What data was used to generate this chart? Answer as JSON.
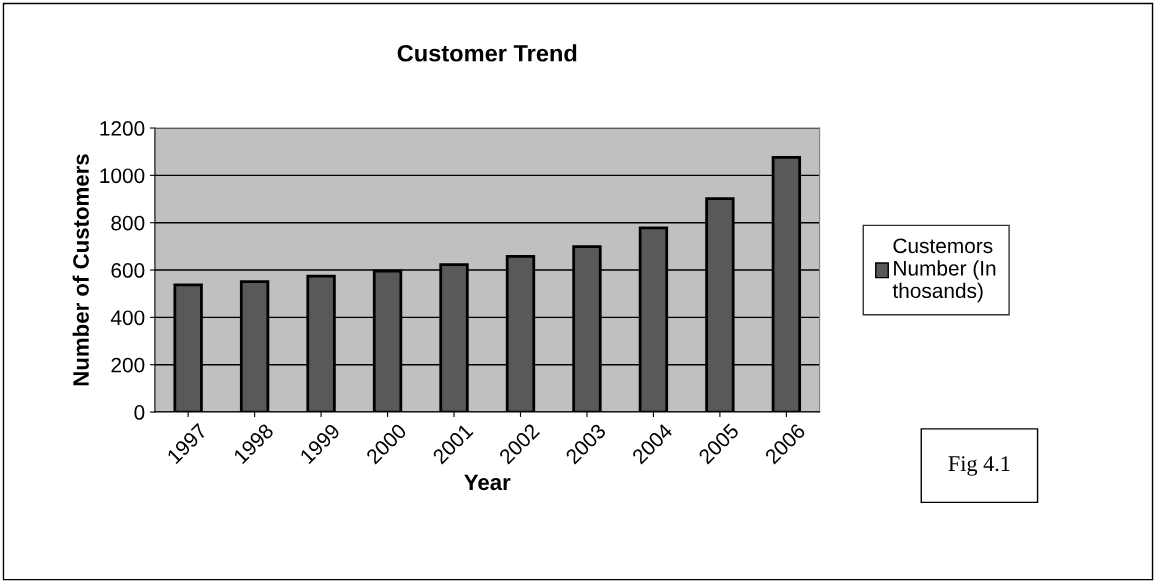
{
  "chart_data": {
    "type": "bar",
    "title": "Customer Trend",
    "xlabel": "Year",
    "ylabel": "Number of Customers",
    "categories": [
      "1997",
      "1998",
      "1999",
      "2000",
      "2001",
      "2002",
      "2003",
      "2004",
      "2005",
      "2006"
    ],
    "series": [
      {
        "name": "Custemors Number (In thosands)",
        "color": "#595959",
        "values": [
          537,
          551,
          574,
          596,
          623,
          658,
          699,
          778,
          902,
          1076
        ]
      }
    ],
    "ylim": [
      0,
      1200
    ],
    "yticks": [
      0,
      200,
      400,
      600,
      800,
      1000,
      1200
    ],
    "grid": "y",
    "legend": "right",
    "annotations": [
      "Fig 4.1"
    ]
  }
}
